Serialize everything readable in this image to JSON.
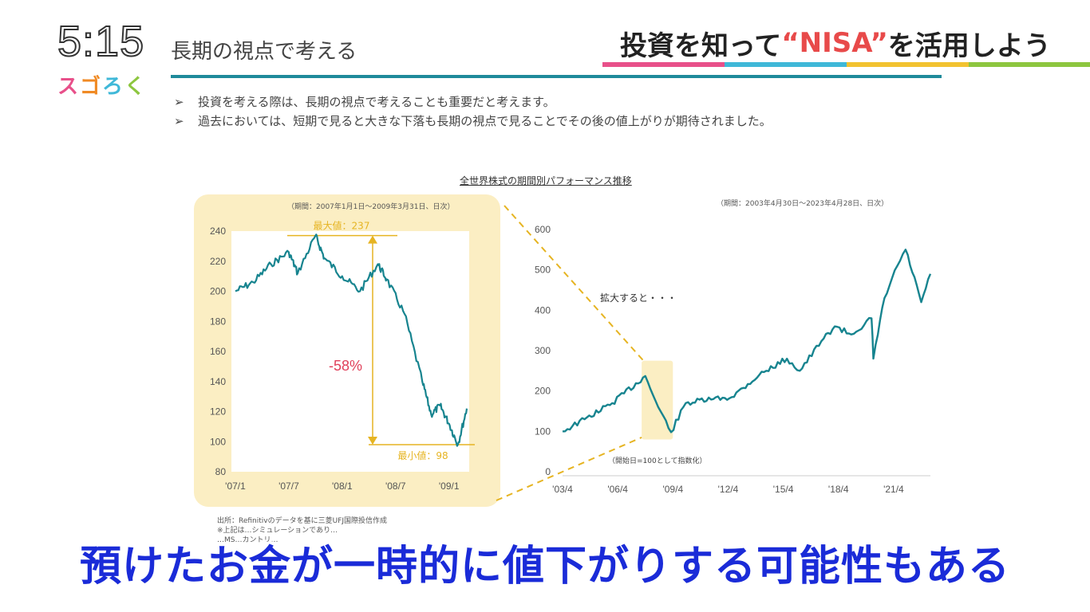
{
  "clock": "5:15",
  "logo": [
    "ス",
    "ゴ",
    "ろ",
    "く"
  ],
  "slide_title": "長期の視点で考える",
  "banner": {
    "pre": "投資を知って",
    "highlight": "“NISA”",
    "post": "を活用しよう"
  },
  "colors": {
    "accent": "#1f8a9a",
    "line": "#17848f",
    "highlight_box": "#fbeec3",
    "guide": "#e6b422",
    "drop": "#e0405a",
    "subtitle": "#1a2bd8"
  },
  "bullets": [
    "投資を考える際は、長期の視点で考えることも重要だと考えます。",
    "過去においては、短期で見ると大きな下落も長期の視点で見ることでその後の値上がりが期待されました。"
  ],
  "bullet_marker": "➢",
  "chart_heading": "全世界株式の期間別パフォーマンス推移",
  "footer_note": [
    "出所：Refinitivのデータを基に三菱UFJ国際投信作成",
    "※上記は…シミュレーションであり…",
    "…MS…カントリ…"
  ],
  "subtitle": "預けたお金が一時的に値下がりする可能性もある",
  "chart_data": [
    {
      "type": "line",
      "period": "（期間：2007年1月1日～2009年3月31日、日次）",
      "x_ticks": [
        "'07/1",
        "'07/7",
        "'08/1",
        "'08/7",
        "'09/1"
      ],
      "y_ticks": [
        240,
        220,
        200,
        180,
        160,
        140,
        120,
        100,
        80
      ],
      "ylim": [
        80,
        240
      ],
      "x": [
        "'07/1",
        "'07/3",
        "'07/5",
        "'07/7",
        "'07/8",
        "'07/10",
        "'07/11",
        "'08/1",
        "'08/3",
        "'08/5",
        "'08/6",
        "'08/8",
        "'08/10",
        "'08/11",
        "'08/12",
        "'09/1",
        "'09/2",
        "'09/3"
      ],
      "y": [
        200,
        206,
        218,
        226,
        212,
        237,
        222,
        210,
        200,
        218,
        208,
        185,
        140,
        118,
        124,
        112,
        98,
        122
      ],
      "annotations": {
        "max": "最大値：237",
        "min": "最小値：98",
        "drop": "-58%"
      }
    },
    {
      "type": "line",
      "period": "（期間：2003年4月30日～2023年4月28日、日次）",
      "x_ticks": [
        "'03/4",
        "'06/4",
        "'09/4",
        "'12/4",
        "'15/4",
        "'18/4",
        "'21/4"
      ],
      "y_ticks": [
        600,
        500,
        400,
        300,
        200,
        100,
        0
      ],
      "ylim": [
        0,
        600
      ],
      "x": [
        2003.3,
        2004.5,
        2006,
        2007.8,
        2008.5,
        2009.2,
        2010,
        2011.5,
        2012.5,
        2014,
        2015.5,
        2016.2,
        2017.5,
        2018.1,
        2019,
        2020.1,
        2020.2,
        2020.8,
        2021.5,
        2021.95,
        2022.8,
        2023.3
      ],
      "y": [
        100,
        130,
        170,
        237,
        160,
        98,
        170,
        180,
        185,
        240,
        280,
        250,
        330,
        360,
        340,
        380,
        280,
        430,
        510,
        550,
        420,
        490
      ],
      "annotations": {
        "zoom": "拡大すると・・・",
        "note": "（開始日=100として指数化）"
      }
    }
  ]
}
